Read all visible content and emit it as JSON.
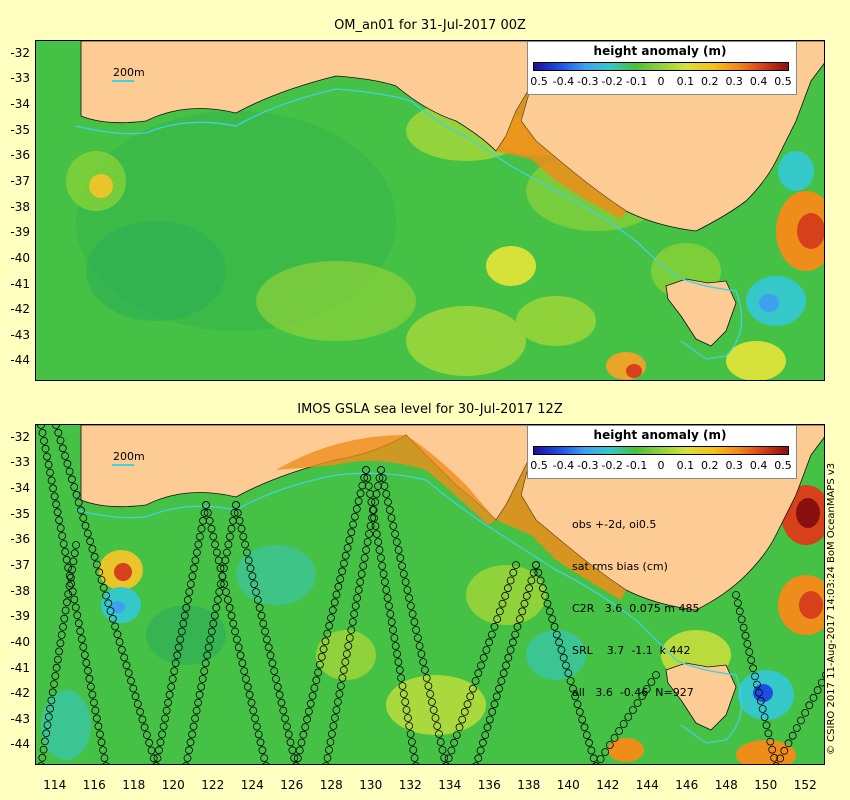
{
  "panels": [
    {
      "title": "OM_an01 for 31-Jul-2017 00Z",
      "legend_title": "height anomaly (m)",
      "scale_label": "200m"
    },
    {
      "title": "IMOS GSLA sea level  for 30-Jul-2017 12Z",
      "legend_title": "height anomaly (m)",
      "scale_label": "200m",
      "stats": [
        "obs +-2d, oi0.5",
        "sat rms bias (cm)",
        "C2R   3.6  0.075 m 485",
        "SRL    3.7  -1.1  k 442",
        "all   3.6  -0.46  N=927"
      ]
    }
  ],
  "legend_ticks": [
    "0.5",
    "-0.4",
    "-0.3",
    "-0.2",
    "-0.1",
    "0",
    "0.1",
    "0.2",
    "0.3",
    "0.4",
    "0.5"
  ],
  "y_ticks": [
    "-32",
    "-33",
    "-34",
    "-35",
    "-36",
    "-37",
    "-38",
    "-39",
    "-40",
    "-41",
    "-42",
    "-43",
    "-44"
  ],
  "x_ticks": [
    "114",
    "116",
    "118",
    "120",
    "122",
    "124",
    "126",
    "128",
    "130",
    "132",
    "134",
    "136",
    "138",
    "140",
    "142",
    "144",
    "146",
    "148",
    "150",
    "152"
  ],
  "credit": "© CSIRO 2017   11-Aug-2017 14:03:24 BoM OceanMAPS v3",
  "colors": {
    "background": "#ffffc0",
    "land": "#fdcb94",
    "ocean": "#45c145",
    "contour_200m": "#46cfe0",
    "colorbar": [
      "#1a0f9e",
      "#1d4ee2",
      "#3fa0f0",
      "#35c8c8",
      "#4bbf3a",
      "#8fd23a",
      "#d6e23a",
      "#f5c21c",
      "#ef8d1a",
      "#d6401a",
      "#8a0f0f"
    ]
  },
  "map": {
    "lon_range": [
      113,
      153
    ],
    "lat_range": [
      -44.8,
      -31.5
    ],
    "region": "Southern Australia"
  }
}
